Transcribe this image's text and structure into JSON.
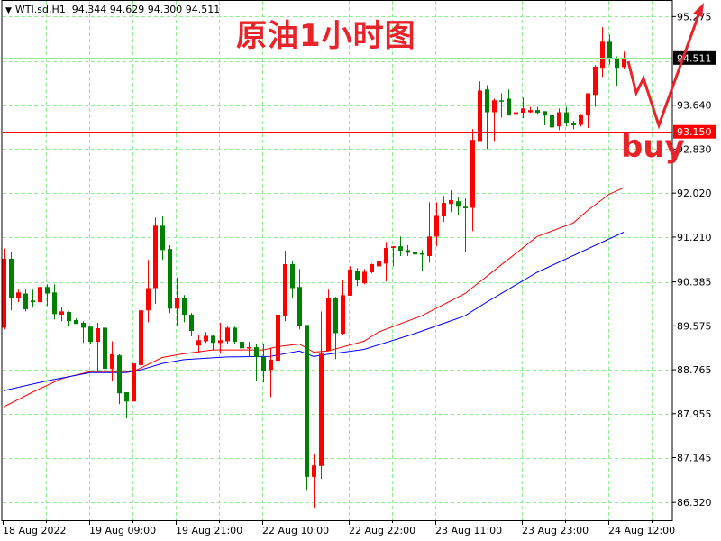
{
  "header": {
    "dropdown_icon": "triangle-down-icon",
    "symbol": "WTI.sd,H1",
    "ohlc_text": "94.344 94.629 94.300 94.511"
  },
  "annotations": {
    "title": "原油1小时图",
    "buy": "buy"
  },
  "chart_data": {
    "type": "candlestick",
    "ylim": [
      85.99,
      95.58
    ],
    "grid": true,
    "colors": {
      "up": "#ff0000",
      "down": "#008000",
      "grid": "#90ee90",
      "annotation": "#e8232a"
    },
    "y_ticks": [
      {
        "value": 95.275,
        "label": "95.275"
      },
      {
        "value": 93.64,
        "label": "93.640"
      },
      {
        "value": 92.83,
        "label": "92.830"
      },
      {
        "value": 92.02,
        "label": "92.020"
      },
      {
        "value": 91.21,
        "label": "91.210"
      },
      {
        "value": 90.385,
        "label": "90.385"
      },
      {
        "value": 89.575,
        "label": "89.575"
      },
      {
        "value": 88.765,
        "label": "88.765"
      },
      {
        "value": 87.955,
        "label": "87.955"
      },
      {
        "value": 87.145,
        "label": "87.145"
      },
      {
        "value": 86.32,
        "label": "86.320"
      }
    ],
    "hidden_grid_values": [
      94.455
    ],
    "x_tick_labels": [
      "18 Aug 2022",
      "19 Aug 09:00",
      "19 Aug 21:00",
      "22 Aug 10:00",
      "22 Aug 22:00",
      "23 Aug 11:00",
      "23 Aug 23:00",
      "24 Aug 12:00"
    ],
    "x_tick_every_bars": 12,
    "price_lines": [
      {
        "value": 94.511,
        "label": "94.511",
        "line_color": "#90ee90",
        "box_color": "#000000"
      },
      {
        "value": 93.15,
        "label": "93.150",
        "line_color": "#ff0000",
        "box_color": "#ff0000"
      }
    ],
    "ohlc": [
      [
        89.54,
        91.0,
        89.51,
        90.81
      ],
      [
        90.81,
        90.94,
        89.86,
        90.09
      ],
      [
        90.09,
        90.24,
        90.01,
        90.19
      ],
      [
        90.17,
        90.24,
        89.84,
        89.88
      ],
      [
        90.04,
        90.24,
        89.91,
        90.01
      ],
      [
        90.01,
        90.29,
        90.01,
        90.29
      ],
      [
        90.29,
        90.34,
        89.94,
        90.17
      ],
      [
        90.19,
        90.34,
        89.69,
        89.79
      ],
      [
        89.78,
        89.92,
        89.66,
        89.84
      ],
      [
        89.83,
        89.84,
        89.56,
        89.66
      ],
      [
        89.68,
        89.71,
        89.61,
        89.61
      ],
      [
        89.63,
        89.66,
        89.26,
        89.54
      ],
      [
        89.56,
        89.56,
        89.23,
        89.28
      ],
      [
        89.28,
        89.63,
        88.71,
        89.53
      ],
      [
        89.54,
        89.74,
        88.56,
        88.78
      ],
      [
        88.78,
        89.29,
        88.56,
        89.05
      ],
      [
        89.03,
        89.05,
        88.13,
        88.33
      ],
      [
        88.35,
        88.35,
        87.87,
        88.18
      ],
      [
        88.18,
        88.88,
        88.18,
        88.88
      ],
      [
        88.85,
        90.47,
        88.71,
        89.86
      ],
      [
        89.86,
        90.79,
        89.64,
        90.27
      ],
      [
        90.27,
        91.57,
        89.98,
        91.42
      ],
      [
        91.42,
        91.59,
        90.79,
        90.97
      ],
      [
        90.99,
        91.06,
        89.81,
        89.89
      ],
      [
        89.89,
        90.47,
        89.58,
        90.09
      ],
      [
        90.09,
        90.14,
        89.64,
        89.78
      ],
      [
        89.78,
        89.81,
        89.38,
        89.48
      ],
      [
        89.21,
        89.41,
        89.08,
        89.31
      ],
      [
        89.29,
        89.46,
        89.26,
        89.39
      ],
      [
        89.39,
        89.41,
        89.13,
        89.26
      ],
      [
        89.26,
        89.63,
        89.06,
        89.31
      ],
      [
        89.29,
        89.56,
        89.24,
        89.54
      ],
      [
        89.54,
        89.56,
        89.24,
        89.28
      ],
      [
        89.28,
        89.28,
        89.05,
        89.16
      ],
      [
        89.16,
        89.28,
        89.0,
        89.18
      ],
      [
        89.18,
        89.24,
        88.56,
        89.0
      ],
      [
        89.0,
        89.24,
        88.53,
        88.73
      ],
      [
        88.76,
        89.16,
        88.26,
        88.95
      ],
      [
        88.93,
        89.89,
        88.78,
        89.78
      ],
      [
        89.76,
        90.96,
        89.66,
        90.71
      ],
      [
        90.71,
        90.77,
        90.08,
        90.27
      ],
      [
        90.29,
        90.62,
        89.51,
        89.58
      ],
      [
        89.59,
        89.59,
        86.55,
        86.79
      ],
      [
        86.79,
        87.22,
        86.22,
        87.0
      ],
      [
        86.99,
        89.84,
        86.75,
        89.06
      ],
      [
        89.11,
        90.24,
        89.11,
        90.08
      ],
      [
        90.08,
        90.11,
        88.96,
        89.44
      ],
      [
        89.43,
        90.42,
        89.41,
        90.14
      ],
      [
        90.13,
        90.67,
        90.13,
        90.61
      ],
      [
        90.59,
        90.64,
        90.31,
        90.41
      ],
      [
        90.36,
        90.62,
        90.34,
        90.57
      ],
      [
        90.56,
        90.72,
        90.54,
        90.71
      ],
      [
        90.67,
        91.09,
        90.59,
        90.76
      ],
      [
        90.72,
        91.12,
        90.39,
        91.01
      ],
      [
        91.01,
        91.04,
        90.67,
        91.04
      ],
      [
        91.04,
        91.22,
        90.86,
        90.96
      ],
      [
        90.97,
        91.06,
        90.86,
        90.92
      ],
      [
        90.94,
        91.01,
        90.71,
        90.89
      ],
      [
        90.91,
        90.97,
        90.59,
        90.89
      ],
      [
        90.86,
        91.85,
        90.74,
        91.22
      ],
      [
        91.22,
        91.85,
        91.04,
        91.6
      ],
      [
        91.59,
        91.97,
        91.49,
        91.84
      ],
      [
        91.82,
        92.07,
        91.67,
        91.89
      ],
      [
        91.87,
        91.94,
        91.62,
        91.77
      ],
      [
        91.77,
        91.92,
        90.94,
        91.74
      ],
      [
        91.75,
        93.2,
        91.32,
        93.0
      ],
      [
        92.98,
        94.08,
        92.98,
        93.91
      ],
      [
        93.93,
        94.01,
        92.83,
        93.51
      ],
      [
        93.51,
        93.76,
        92.98,
        93.73
      ],
      [
        93.73,
        93.86,
        93.41,
        93.71
      ],
      [
        93.76,
        93.93,
        93.45,
        93.45
      ],
      [
        93.48,
        93.65,
        93.45,
        93.51
      ],
      [
        93.5,
        93.78,
        93.4,
        93.58
      ],
      [
        93.51,
        93.61,
        93.5,
        93.55
      ],
      [
        93.55,
        93.61,
        93.48,
        93.5
      ],
      [
        93.53,
        93.53,
        93.27,
        93.45
      ],
      [
        93.46,
        93.46,
        93.2,
        93.23
      ],
      [
        93.25,
        93.58,
        93.18,
        93.51
      ],
      [
        93.51,
        93.61,
        93.25,
        93.32
      ],
      [
        93.32,
        93.35,
        93.2,
        93.27
      ],
      [
        93.28,
        93.48,
        93.25,
        93.46
      ],
      [
        93.45,
        93.86,
        93.22,
        93.86
      ],
      [
        93.83,
        94.38,
        93.61,
        94.35
      ],
      [
        94.33,
        95.08,
        94.16,
        94.81
      ],
      [
        94.81,
        94.94,
        94.39,
        94.51
      ],
      [
        94.51,
        94.54,
        94.0,
        94.33
      ],
      [
        94.344,
        94.629,
        94.3,
        94.511
      ]
    ],
    "moving_averages": [
      {
        "color": "#ff0000",
        "points": [
          [
            0,
            88.08
          ],
          [
            4,
            88.35
          ],
          [
            8,
            88.6
          ],
          [
            12,
            88.73
          ],
          [
            18,
            88.73
          ],
          [
            20,
            88.86
          ],
          [
            22,
            88.99
          ],
          [
            25,
            89.06
          ],
          [
            29,
            89.13
          ],
          [
            36,
            89.13
          ],
          [
            38,
            89.19
          ],
          [
            41,
            89.24
          ],
          [
            43,
            89.09
          ],
          [
            45,
            89.11
          ],
          [
            50,
            89.29
          ],
          [
            52,
            89.46
          ],
          [
            58,
            89.76
          ],
          [
            64,
            90.17
          ],
          [
            68,
            90.59
          ],
          [
            74,
            91.22
          ],
          [
            79,
            91.47
          ],
          [
            81,
            91.7
          ],
          [
            84,
            92.0
          ],
          [
            86,
            92.12
          ]
        ]
      },
      {
        "color": "#0000ff",
        "points": [
          [
            0,
            88.38
          ],
          [
            6,
            88.56
          ],
          [
            12,
            88.71
          ],
          [
            17,
            88.71
          ],
          [
            19,
            88.76
          ],
          [
            22,
            88.88
          ],
          [
            25,
            88.95
          ],
          [
            31,
            89.0
          ],
          [
            37,
            89.01
          ],
          [
            41,
            89.11
          ],
          [
            43,
            89.01
          ],
          [
            45,
            89.05
          ],
          [
            50,
            89.14
          ],
          [
            57,
            89.43
          ],
          [
            64,
            89.76
          ],
          [
            67,
            90.01
          ],
          [
            74,
            90.56
          ],
          [
            86,
            91.3
          ]
        ]
      }
    ]
  }
}
